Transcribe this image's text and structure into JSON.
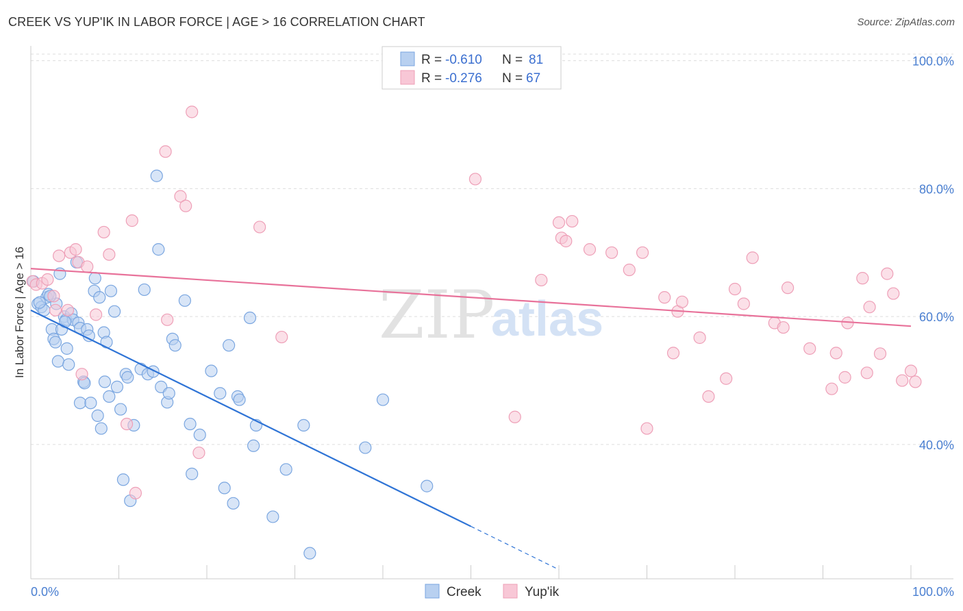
{
  "title": "CREEK VS YUP'IK IN LABOR FORCE | AGE > 16 CORRELATION CHART",
  "source": "Source: ZipAtlas.com",
  "watermark": {
    "zip": "ZIP",
    "atlas": "atlas"
  },
  "legend": {
    "r_label": "R =",
    "n_label": "N =",
    "items": [
      {
        "name": "Creek",
        "r": "-0.610",
        "n": "81",
        "fill": "#b8d0f0",
        "stroke": "#7aa6e0"
      },
      {
        "name": "Yup'ik",
        "r": "-0.276",
        "n": "67",
        "fill": "#f8c7d6",
        "stroke": "#ee9fb7"
      }
    ]
  },
  "chart_data": {
    "type": "scatter",
    "title": "CREEK VS YUP'IK IN LABOR FORCE | AGE > 16 CORRELATION CHART",
    "xlabel": "",
    "ylabel": "In Labor Force | Age > 16",
    "xlim": [
      0,
      100
    ],
    "ylim": [
      19,
      102
    ],
    "x_tick_labels": [
      {
        "value": 0,
        "label": "0.0%"
      },
      {
        "value": 100,
        "label": "100.0%"
      }
    ],
    "y_ticks": [
      {
        "value": 40,
        "label": "40.0%"
      },
      {
        "value": 60,
        "label": "60.0%"
      },
      {
        "value": 80,
        "label": "80.0%"
      },
      {
        "value": 100,
        "label": "100.0%"
      }
    ],
    "grid": "horizontal dashed",
    "legend_position": "top-center",
    "colors": {
      "creek": "#2f74d6",
      "yupik": "#e8729a",
      "creek_fill": "#b8d0f0",
      "yupik_fill": "#f8c7d6"
    },
    "series": [
      {
        "name": "Creek",
        "trend": {
          "x0": 0,
          "y0": 61.0,
          "x1": 50,
          "y1": 27.2,
          "dash_to_x": 60
        },
        "points": [
          [
            0.8,
            62
          ],
          [
            1.2,
            61.5
          ],
          [
            1.5,
            61
          ],
          [
            1.8,
            63
          ],
          [
            2.0,
            63.5
          ],
          [
            2.4,
            58
          ],
          [
            2.6,
            56.5
          ],
          [
            2.8,
            56
          ],
          [
            2.9,
            62
          ],
          [
            3.1,
            53
          ],
          [
            3.3,
            66.7
          ],
          [
            3.5,
            58
          ],
          [
            3.8,
            60
          ],
          [
            4.0,
            59.5
          ],
          [
            4.1,
            55
          ],
          [
            4.3,
            52.5
          ],
          [
            4.6,
            60.5
          ],
          [
            4.8,
            59.5
          ],
          [
            5.2,
            68.5
          ],
          [
            5.4,
            59
          ],
          [
            5.6,
            58.2
          ],
          [
            5.6,
            46.5
          ],
          [
            6.0,
            49.8
          ],
          [
            6.1,
            49.6
          ],
          [
            6.4,
            58
          ],
          [
            6.6,
            57
          ],
          [
            6.8,
            46.5
          ],
          [
            7.2,
            64
          ],
          [
            7.3,
            66
          ],
          [
            7.6,
            44.5
          ],
          [
            7.8,
            63
          ],
          [
            8.0,
            42.5
          ],
          [
            8.3,
            57.5
          ],
          [
            8.4,
            49.8
          ],
          [
            8.6,
            56
          ],
          [
            8.9,
            47.5
          ],
          [
            9.1,
            64
          ],
          [
            9.5,
            60.8
          ],
          [
            9.8,
            49
          ],
          [
            10.2,
            45.5
          ],
          [
            10.5,
            34.5
          ],
          [
            10.8,
            51
          ],
          [
            11.0,
            50.5
          ],
          [
            11.3,
            31.2
          ],
          [
            11.7,
            43
          ],
          [
            12.5,
            51.8
          ],
          [
            12.9,
            64.2
          ],
          [
            13.3,
            51
          ],
          [
            13.9,
            51.4
          ],
          [
            14.3,
            82
          ],
          [
            14.5,
            70.5
          ],
          [
            14.8,
            49
          ],
          [
            15.5,
            46.6
          ],
          [
            15.7,
            48
          ],
          [
            16.1,
            56.5
          ],
          [
            16.4,
            55.5
          ],
          [
            17.5,
            62.5
          ],
          [
            18.1,
            43.2
          ],
          [
            18.3,
            35.4
          ],
          [
            19.2,
            41.5
          ],
          [
            20.5,
            51.5
          ],
          [
            21.5,
            48
          ],
          [
            22.0,
            33.2
          ],
          [
            22.5,
            55.5
          ],
          [
            23.0,
            30.8
          ],
          [
            23.5,
            47.5
          ],
          [
            23.7,
            47
          ],
          [
            24.9,
            59.8
          ],
          [
            25.3,
            39.8
          ],
          [
            25.6,
            43
          ],
          [
            27.5,
            28.7
          ],
          [
            29.0,
            36.1
          ],
          [
            31.0,
            43
          ],
          [
            31.7,
            23
          ],
          [
            38.0,
            39.5
          ],
          [
            40.0,
            47
          ],
          [
            45.0,
            33.5
          ],
          [
            0.3,
            65.5
          ],
          [
            1.0,
            62.2
          ],
          [
            2.2,
            63.2
          ],
          [
            3.9,
            59.2
          ]
        ]
      },
      {
        "name": "Yup'ik",
        "trend": {
          "x0": 0,
          "y0": 67.5,
          "x1": 100,
          "y1": 58.5
        },
        "points": [
          [
            0.2,
            65.5
          ],
          [
            0.6,
            65
          ],
          [
            1.3,
            65.2
          ],
          [
            1.9,
            65.8
          ],
          [
            2.6,
            63.2
          ],
          [
            2.8,
            61
          ],
          [
            3.2,
            69.5
          ],
          [
            4.2,
            61
          ],
          [
            4.5,
            70
          ],
          [
            5.1,
            70.5
          ],
          [
            5.4,
            68.5
          ],
          [
            5.8,
            51
          ],
          [
            6.4,
            67.8
          ],
          [
            7.4,
            60.3
          ],
          [
            8.3,
            73.2
          ],
          [
            8.9,
            69.7
          ],
          [
            10.9,
            43.2
          ],
          [
            11.5,
            75
          ],
          [
            11.9,
            32.4
          ],
          [
            15.3,
            85.8
          ],
          [
            15.5,
            59.5
          ],
          [
            17.0,
            78.8
          ],
          [
            17.6,
            77.3
          ],
          [
            18.3,
            92
          ],
          [
            19.1,
            38.7
          ],
          [
            26.0,
            74
          ],
          [
            28.5,
            56.8
          ],
          [
            41.6,
            100
          ],
          [
            50.5,
            81.5
          ],
          [
            55.0,
            44.3
          ],
          [
            58.0,
            65.7
          ],
          [
            60.0,
            74.7
          ],
          [
            60.3,
            72.3
          ],
          [
            60.8,
            71.8
          ],
          [
            61.5,
            74.9
          ],
          [
            63.5,
            70.5
          ],
          [
            66.0,
            70
          ],
          [
            68.0,
            67.3
          ],
          [
            69.5,
            70
          ],
          [
            70.0,
            42.5
          ],
          [
            72.0,
            63
          ],
          [
            73.0,
            54.3
          ],
          [
            73.5,
            60.8
          ],
          [
            74.0,
            62.3
          ],
          [
            76.0,
            56.7
          ],
          [
            77.0,
            47.5
          ],
          [
            79.0,
            50.3
          ],
          [
            80.0,
            64.3
          ],
          [
            81.0,
            62
          ],
          [
            82.0,
            69.2
          ],
          [
            84.5,
            59
          ],
          [
            85.5,
            58.3
          ],
          [
            86.0,
            64.5
          ],
          [
            88.5,
            55
          ],
          [
            91.0,
            48.7
          ],
          [
            91.5,
            54.3
          ],
          [
            92.5,
            50.5
          ],
          [
            92.8,
            59
          ],
          [
            94.5,
            66
          ],
          [
            95.0,
            51.2
          ],
          [
            95.3,
            61.5
          ],
          [
            96.5,
            54.2
          ],
          [
            97.3,
            66.7
          ],
          [
            98.0,
            63.6
          ],
          [
            99.0,
            50
          ],
          [
            100.0,
            51.5
          ],
          [
            100.5,
            49.8
          ]
        ]
      }
    ]
  }
}
